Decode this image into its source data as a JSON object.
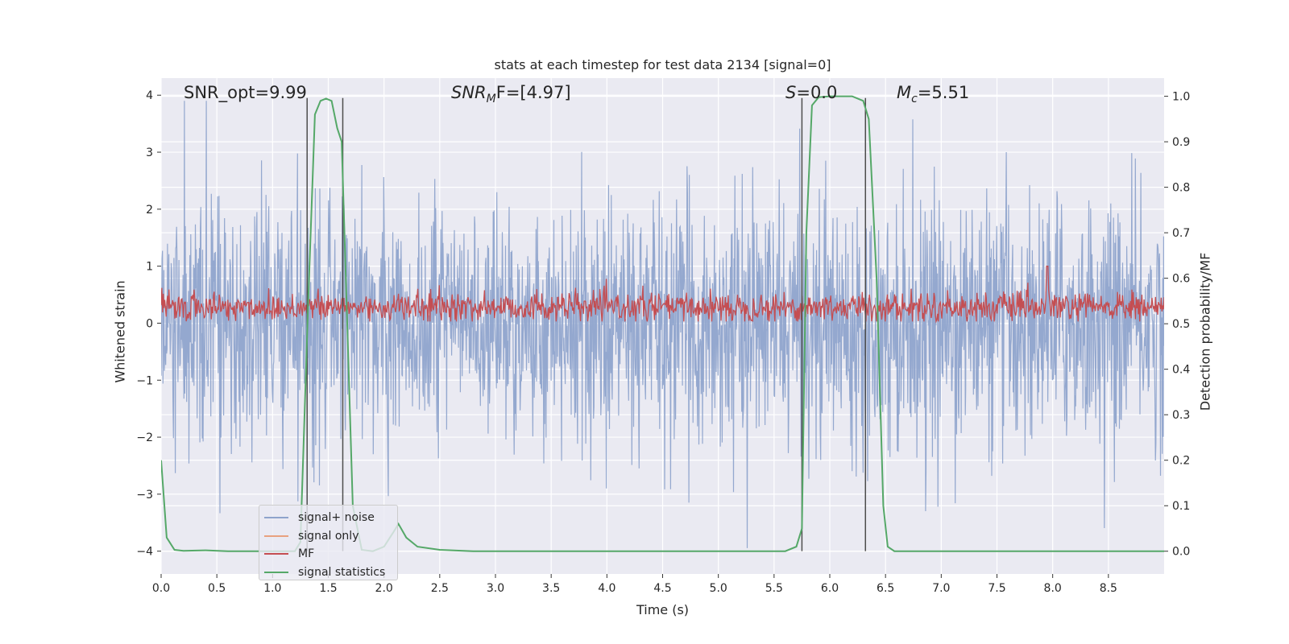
{
  "chart_data": {
    "type": "line",
    "title": "stats at each timestep for test data 2134 [signal=0]",
    "xlabel": "Time (s)",
    "ylabel_left": "Whitened strain",
    "ylabel_right": "Detection probability/MF",
    "xlim": [
      0.0,
      9.0
    ],
    "ylim_left": [
      -4.4,
      4.3
    ],
    "ylim_right": [
      -0.05,
      1.04
    ],
    "x_ticks": [
      "0.0",
      "0.5",
      "1.0",
      "1.5",
      "2.0",
      "2.5",
      "3.0",
      "3.5",
      "4.0",
      "4.5",
      "5.0",
      "5.5",
      "6.0",
      "6.5",
      "7.0",
      "7.5",
      "8.0",
      "8.5"
    ],
    "y_ticks_left": [
      "4",
      "3",
      "2",
      "1",
      "0",
      "−1",
      "−2",
      "−3",
      "−4"
    ],
    "y_ticks_right": [
      "1.0",
      "0.9",
      "0.8",
      "0.7",
      "0.6",
      "0.5",
      "0.4",
      "0.3",
      "0.2",
      "0.1",
      "0.0"
    ],
    "annotations": {
      "snr_opt": "SNR_opt=9.99",
      "snr_mf_main": "SNR",
      "snr_mf_sub": "M",
      "snr_mf_rest": "F=[4.97]",
      "s_italic": "S",
      "s_rest": "=0.0",
      "mc_main": "M",
      "mc_sub": "c",
      "mc_rest": "=5.51"
    },
    "series": [
      {
        "name": "signal+ noise",
        "color": "#8fa4cc",
        "kind": "noise",
        "amplitude_range": [
          -4.0,
          3.9
        ]
      },
      {
        "name": "signal only",
        "color": "#e8a17f",
        "kind": "flat",
        "values": []
      },
      {
        "name": "MF",
        "color": "#c44e52",
        "kind": "noise",
        "amplitude_range": [
          0.0,
          1.0
        ]
      },
      {
        "name": "signal statistics",
        "color": "#55a868",
        "axis": "right",
        "x": [
          0.0,
          0.05,
          0.12,
          0.2,
          0.4,
          0.6,
          0.9,
          1.2,
          1.25,
          1.32,
          1.38,
          1.43,
          1.48,
          1.53,
          1.58,
          1.62,
          1.67,
          1.72,
          1.8,
          1.9,
          2.0,
          2.08,
          2.13,
          2.2,
          2.3,
          2.5,
          2.8,
          3.5,
          5.6,
          5.7,
          5.75,
          5.79,
          5.84,
          5.9,
          6.0,
          6.2,
          6.3,
          6.35,
          6.42,
          6.48,
          6.52,
          6.58,
          6.8,
          9.0
        ],
        "y": [
          0.2,
          0.03,
          0.003,
          0.001,
          0.002,
          0.0,
          0.0,
          0.0,
          0.02,
          0.55,
          0.96,
          0.99,
          0.995,
          0.99,
          0.93,
          0.9,
          0.5,
          0.1,
          0.003,
          0.0,
          0.01,
          0.04,
          0.06,
          0.03,
          0.01,
          0.003,
          0.0,
          0.0,
          0.0,
          0.01,
          0.05,
          0.7,
          0.98,
          0.998,
          1.0,
          1.0,
          0.99,
          0.95,
          0.6,
          0.1,
          0.01,
          0.0,
          0.0,
          0.0
        ]
      }
    ],
    "vertical_lines": [
      {
        "x": 1.31,
        "y_top": 3.95,
        "y_bottom": -4.0
      },
      {
        "x": 1.63,
        "y_top": 3.95,
        "y_bottom": -4.0
      },
      {
        "x": 5.75,
        "y_top": 3.95,
        "y_bottom": -4.0
      },
      {
        "x": 6.32,
        "y_top": 3.95,
        "y_bottom": -4.0
      }
    ],
    "legend": {
      "position": "lower-left"
    },
    "colors": {
      "background": "#eaeaf2",
      "grid": "#ffffff",
      "text": "#262626",
      "vline": "#4d4d4d"
    }
  }
}
